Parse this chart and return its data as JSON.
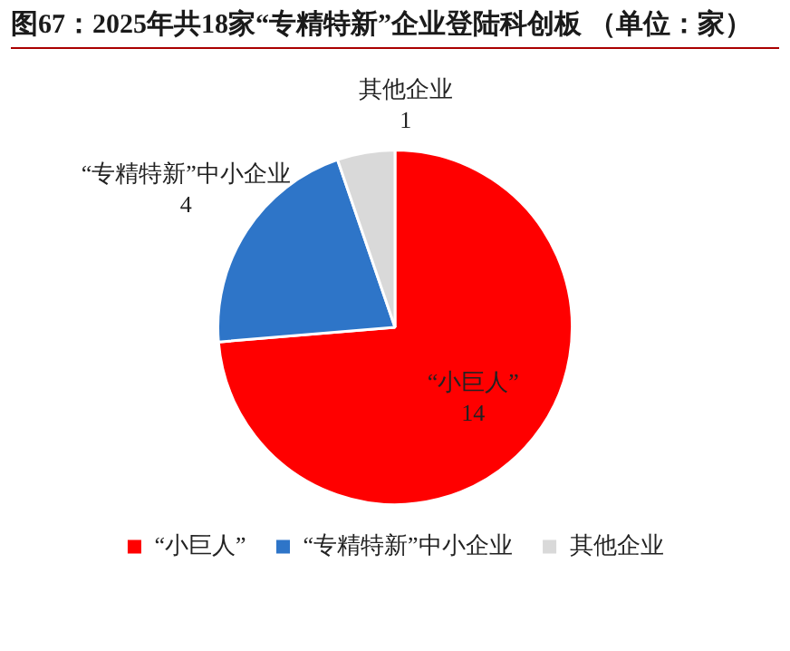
{
  "chart_data": {
    "type": "pie",
    "title": "图67：2025年共18家“专精特新”企业登陆科创板 （单位：家）",
    "categories": [
      "“小巨人”",
      "“专精特新”中小企业",
      "其他企业"
    ],
    "values": [
      14,
      4,
      1
    ],
    "colors": [
      "#ff0000",
      "#2e75c8",
      "#d9d9d9"
    ],
    "data_labels": true,
    "legend": "bottom"
  }
}
